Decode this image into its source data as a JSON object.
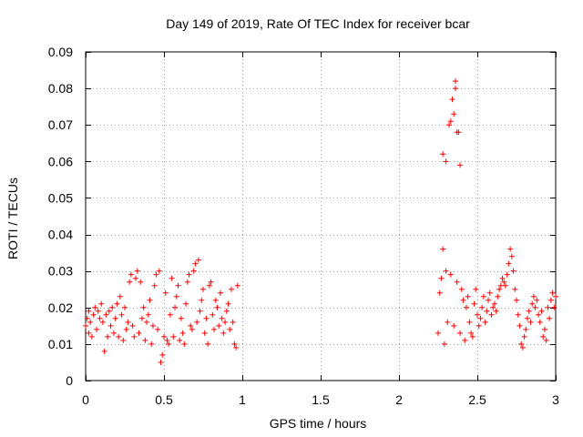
{
  "chart_data": {
    "type": "scatter",
    "title": "Day 149 of 2019, Rate Of TEC Index for receiver bcar",
    "xlabel": "GPS time / hours",
    "ylabel": "ROTI / TECUs",
    "xlim": [
      0,
      3
    ],
    "ylim": [
      0,
      0.09
    ],
    "xticks": [
      {
        "value": 0,
        "label": "0"
      },
      {
        "value": 0.5,
        "label": "0.5"
      },
      {
        "value": 1,
        "label": "1"
      },
      {
        "value": 1.5,
        "label": "1.5"
      },
      {
        "value": 2,
        "label": "2"
      },
      {
        "value": 2.5,
        "label": "2.5"
      },
      {
        "value": 3,
        "label": "3"
      }
    ],
    "yticks": [
      {
        "value": 0,
        "label": "0"
      },
      {
        "value": 0.01,
        "label": "0.01"
      },
      {
        "value": 0.02,
        "label": "0.02"
      },
      {
        "value": 0.03,
        "label": "0.03"
      },
      {
        "value": 0.04,
        "label": "0.04"
      },
      {
        "value": 0.05,
        "label": "0.05"
      },
      {
        "value": 0.06,
        "label": "0.06"
      },
      {
        "value": 0.07,
        "label": "0.07"
      },
      {
        "value": 0.08,
        "label": "0.08"
      },
      {
        "value": 0.09,
        "label": "0.09"
      }
    ],
    "grid": true,
    "marker": "+",
    "color": "#ff0000",
    "series": [
      {
        "name": "ROTI",
        "points": [
          [
            0.0,
            0.015
          ],
          [
            0.01,
            0.017
          ],
          [
            0.02,
            0.013
          ],
          [
            0.02,
            0.019
          ],
          [
            0.03,
            0.016
          ],
          [
            0.04,
            0.012
          ],
          [
            0.05,
            0.018
          ],
          [
            0.06,
            0.02
          ],
          [
            0.07,
            0.014
          ],
          [
            0.08,
            0.019
          ],
          [
            0.09,
            0.017
          ],
          [
            0.1,
            0.021
          ],
          [
            0.11,
            0.016
          ],
          [
            0.12,
            0.008
          ],
          [
            0.13,
            0.018
          ],
          [
            0.14,
            0.012
          ],
          [
            0.15,
            0.019
          ],
          [
            0.16,
            0.015
          ],
          [
            0.17,
            0.02
          ],
          [
            0.18,
            0.013
          ],
          [
            0.19,
            0.017
          ],
          [
            0.2,
            0.021
          ],
          [
            0.21,
            0.012
          ],
          [
            0.22,
            0.023
          ],
          [
            0.23,
            0.018
          ],
          [
            0.24,
            0.011
          ],
          [
            0.25,
            0.02
          ],
          [
            0.26,
            0.014
          ],
          [
            0.27,
            0.016
          ],
          [
            0.28,
            0.027
          ],
          [
            0.29,
            0.029
          ],
          [
            0.3,
            0.015
          ],
          [
            0.31,
            0.012
          ],
          [
            0.32,
            0.028
          ],
          [
            0.33,
            0.03
          ],
          [
            0.34,
            0.013
          ],
          [
            0.35,
            0.027
          ],
          [
            0.36,
            0.017
          ],
          [
            0.37,
            0.02
          ],
          [
            0.38,
            0.011
          ],
          [
            0.39,
            0.016
          ],
          [
            0.4,
            0.018
          ],
          [
            0.41,
            0.022
          ],
          [
            0.42,
            0.01
          ],
          [
            0.43,
            0.015
          ],
          [
            0.44,
            0.026
          ],
          [
            0.45,
            0.029
          ],
          [
            0.46,
            0.014
          ],
          [
            0.47,
            0.03
          ],
          [
            0.48,
            0.005
          ],
          [
            0.49,
            0.007
          ],
          [
            0.5,
            0.012
          ],
          [
            0.51,
            0.024
          ],
          [
            0.52,
            0.011
          ],
          [
            0.53,
            0.01
          ],
          [
            0.54,
            0.018
          ],
          [
            0.55,
            0.028
          ],
          [
            0.56,
            0.012
          ],
          [
            0.57,
            0.02
          ],
          [
            0.58,
            0.023
          ],
          [
            0.59,
            0.026
          ],
          [
            0.6,
            0.011
          ],
          [
            0.61,
            0.017
          ],
          [
            0.62,
            0.013
          ],
          [
            0.63,
            0.01
          ],
          [
            0.64,
            0.021
          ],
          [
            0.65,
            0.027
          ],
          [
            0.66,
            0.029
          ],
          [
            0.67,
            0.015
          ],
          [
            0.68,
            0.014
          ],
          [
            0.69,
            0.03
          ],
          [
            0.7,
            0.032
          ],
          [
            0.71,
            0.016
          ],
          [
            0.72,
            0.033
          ],
          [
            0.73,
            0.019
          ],
          [
            0.74,
            0.022
          ],
          [
            0.75,
            0.025
          ],
          [
            0.76,
            0.013
          ],
          [
            0.77,
            0.017
          ],
          [
            0.78,
            0.01
          ],
          [
            0.79,
            0.026
          ],
          [
            0.8,
            0.027
          ],
          [
            0.81,
            0.018
          ],
          [
            0.82,
            0.014
          ],
          [
            0.83,
            0.022
          ],
          [
            0.84,
            0.02
          ],
          [
            0.85,
            0.015
          ],
          [
            0.86,
            0.024
          ],
          [
            0.87,
            0.017
          ],
          [
            0.88,
            0.013
          ],
          [
            0.89,
            0.016
          ],
          [
            0.9,
            0.019
          ],
          [
            0.91,
            0.021
          ],
          [
            0.92,
            0.014
          ],
          [
            0.93,
            0.025
          ],
          [
            0.94,
            0.016
          ],
          [
            0.95,
            0.01
          ],
          [
            0.96,
            0.009
          ],
          [
            0.97,
            0.026
          ],
          [
            2.25,
            0.013
          ],
          [
            2.26,
            0.024
          ],
          [
            2.27,
            0.028
          ],
          [
            2.28,
            0.062
          ],
          [
            2.28,
            0.036
          ],
          [
            2.29,
            0.01
          ],
          [
            2.3,
            0.06
          ],
          [
            2.3,
            0.03
          ],
          [
            2.31,
            0.016
          ],
          [
            2.32,
            0.07
          ],
          [
            2.33,
            0.071
          ],
          [
            2.33,
            0.029
          ],
          [
            2.34,
            0.077
          ],
          [
            2.35,
            0.073
          ],
          [
            2.35,
            0.015
          ],
          [
            2.36,
            0.08
          ],
          [
            2.36,
            0.082
          ],
          [
            2.37,
            0.068
          ],
          [
            2.37,
            0.027
          ],
          [
            2.38,
            0.068
          ],
          [
            2.39,
            0.059
          ],
          [
            2.39,
            0.013
          ],
          [
            2.4,
            0.025
          ],
          [
            2.41,
            0.022
          ],
          [
            2.42,
            0.011
          ],
          [
            2.43,
            0.02
          ],
          [
            2.44,
            0.023
          ],
          [
            2.45,
            0.016
          ],
          [
            2.46,
            0.013
          ],
          [
            2.47,
            0.012
          ],
          [
            2.48,
            0.021
          ],
          [
            2.49,
            0.025
          ],
          [
            2.5,
            0.018
          ],
          [
            2.51,
            0.015
          ],
          [
            2.52,
            0.017
          ],
          [
            2.53,
            0.02
          ],
          [
            2.54,
            0.023
          ],
          [
            2.55,
            0.016
          ],
          [
            2.56,
            0.019
          ],
          [
            2.57,
            0.022
          ],
          [
            2.58,
            0.024
          ],
          [
            2.59,
            0.018
          ],
          [
            2.6,
            0.02
          ],
          [
            2.61,
            0.021
          ],
          [
            2.62,
            0.019
          ],
          [
            2.63,
            0.023
          ],
          [
            2.64,
            0.025
          ],
          [
            2.65,
            0.026
          ],
          [
            2.66,
            0.028
          ],
          [
            2.67,
            0.027
          ],
          [
            2.68,
            0.026
          ],
          [
            2.69,
            0.029
          ],
          [
            2.7,
            0.032
          ],
          [
            2.71,
            0.036
          ],
          [
            2.72,
            0.034
          ],
          [
            2.73,
            0.03
          ],
          [
            2.74,
            0.025
          ],
          [
            2.75,
            0.022
          ],
          [
            2.76,
            0.018
          ],
          [
            2.77,
            0.015
          ],
          [
            2.78,
            0.01
          ],
          [
            2.79,
            0.009
          ],
          [
            2.8,
            0.012
          ],
          [
            2.81,
            0.014
          ],
          [
            2.82,
            0.017
          ],
          [
            2.83,
            0.019
          ],
          [
            2.84,
            0.016
          ],
          [
            2.85,
            0.021
          ],
          [
            2.86,
            0.023
          ],
          [
            2.87,
            0.02
          ],
          [
            2.88,
            0.022
          ],
          [
            2.89,
            0.018
          ],
          [
            2.9,
            0.016
          ],
          [
            2.91,
            0.019
          ],
          [
            2.92,
            0.012
          ],
          [
            2.93,
            0.014
          ],
          [
            2.94,
            0.011
          ],
          [
            2.95,
            0.02
          ],
          [
            2.96,
            0.017
          ],
          [
            2.97,
            0.022
          ],
          [
            2.98,
            0.024
          ],
          [
            2.99,
            0.02
          ],
          [
            3.0,
            0.023
          ]
        ]
      }
    ]
  }
}
